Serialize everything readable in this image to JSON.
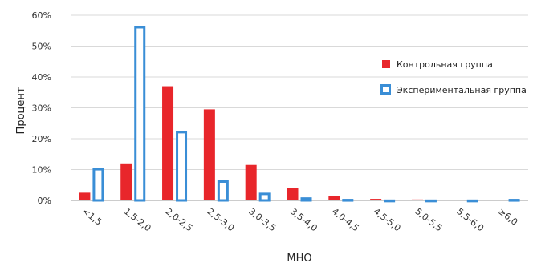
{
  "chart_data": {
    "type": "bar",
    "xlabel": "МНО",
    "ylabel": "Процент",
    "ylim": [
      0,
      60
    ],
    "yticks": [
      "0%",
      "10%",
      "20%",
      "30%",
      "40%",
      "50%",
      "60%"
    ],
    "grid": true,
    "legend_position": "right",
    "categories": [
      "<1,5",
      "1,5-2,0",
      "2,0-2,5",
      "2,5-3,0",
      "3,0-3,5",
      "3,5-4,0",
      "4,0-4,5",
      "4,5-5,0",
      "5,0-5,5",
      "5,5-6,0",
      "≥6,0"
    ],
    "series": [
      {
        "name": "Контрольная группа",
        "style": "filled",
        "color": "#e8262b",
        "values": [
          2.5,
          12,
          37,
          29.5,
          11.5,
          4,
          1.3,
          0.5,
          0.3,
          0.2,
          0.2
        ]
      },
      {
        "name": "Экспериментальная группа",
        "style": "outline",
        "color": "#3a8ed6",
        "values": [
          10.5,
          56.5,
          22.5,
          6.5,
          2.5,
          1,
          0.5,
          0.3,
          0.3,
          0.3,
          0.5
        ]
      }
    ]
  }
}
